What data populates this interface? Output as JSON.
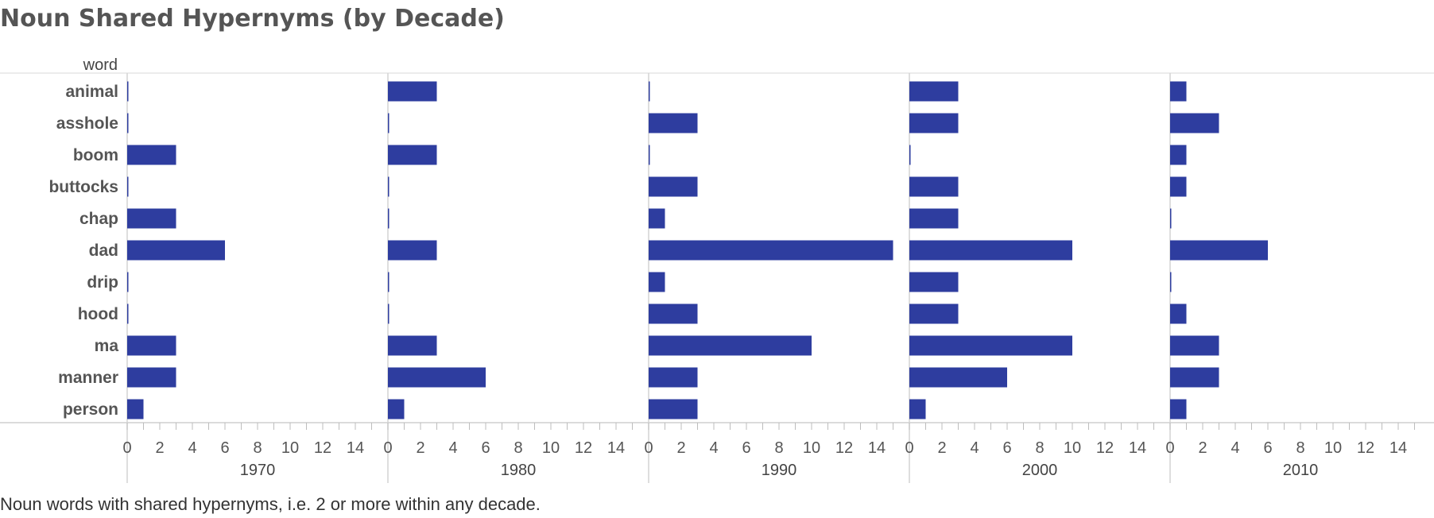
{
  "title": "Noun Shared Hypernyms (by Decade)",
  "caption": "Noun words with shared hypernyms, i.e. 2 or more within any decade.",
  "chart_data": {
    "type": "bar",
    "orientation": "horizontal",
    "row_header": "word",
    "categories": [
      "animal",
      "asshole",
      "boom",
      "buttocks",
      "chap",
      "dad",
      "drip",
      "hood",
      "ma",
      "manner",
      "person"
    ],
    "xlim": [
      0,
      15
    ],
    "xticks": [
      0,
      2,
      4,
      6,
      8,
      10,
      12,
      14
    ],
    "bar_color": "#2e3d9f",
    "grid": false,
    "panels": [
      {
        "decade": "1970",
        "values": [
          0,
          0,
          3,
          0,
          3,
          6,
          0,
          0,
          3,
          3,
          1
        ]
      },
      {
        "decade": "1980",
        "values": [
          3,
          0,
          3,
          0,
          0,
          3,
          0,
          0,
          3,
          6,
          1
        ]
      },
      {
        "decade": "1990",
        "values": [
          0,
          3,
          0,
          3,
          1,
          15,
          1,
          3,
          10,
          3,
          3
        ]
      },
      {
        "decade": "2000",
        "values": [
          3,
          3,
          0,
          3,
          3,
          10,
          3,
          3,
          10,
          6,
          1
        ]
      },
      {
        "decade": "2010",
        "values": [
          1,
          3,
          1,
          1,
          0,
          6,
          0,
          1,
          3,
          3,
          1
        ]
      }
    ]
  }
}
